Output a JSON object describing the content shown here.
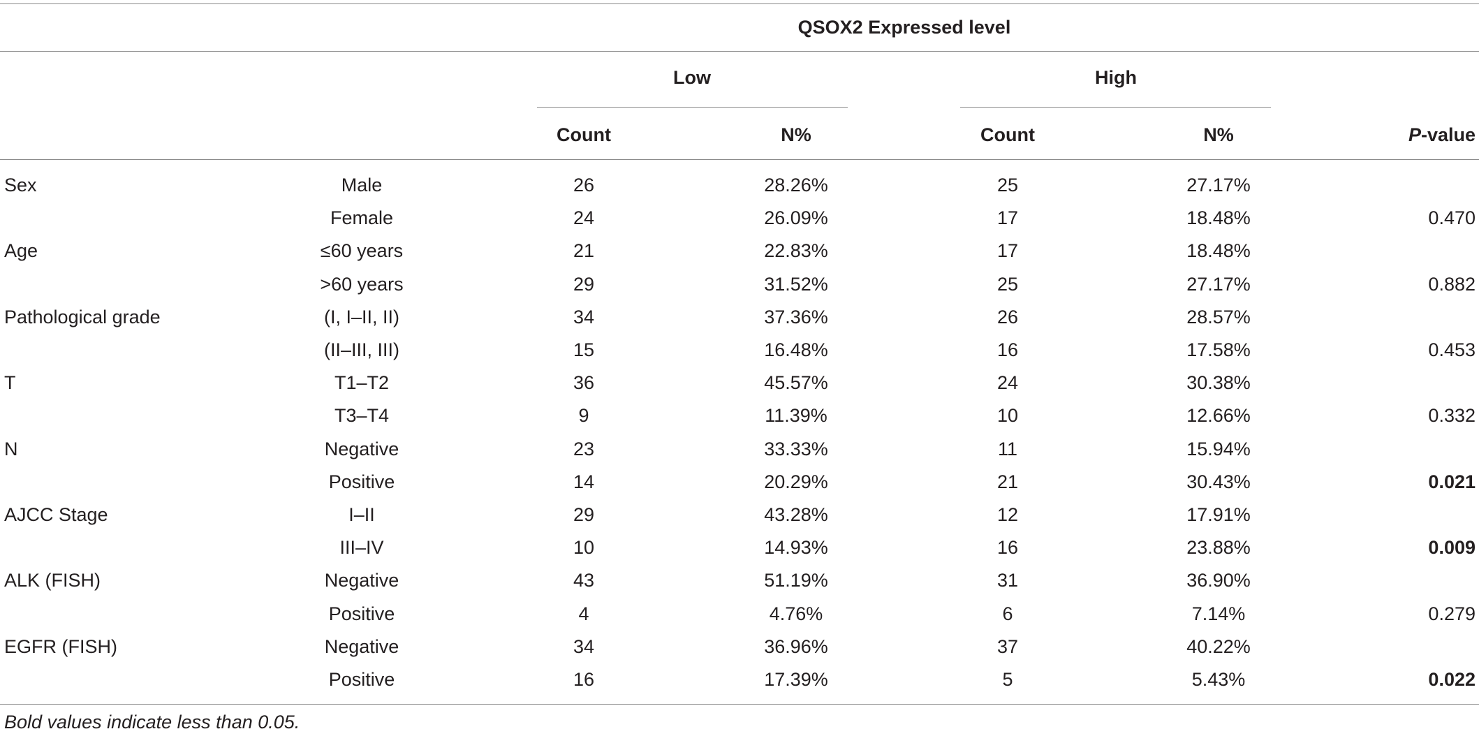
{
  "table": {
    "header": {
      "group_title": "QSOX2 Expressed level",
      "low": "Low",
      "high": "High",
      "low_count": "Count",
      "low_pct": "N%",
      "high_count": "Count",
      "high_pct": "N%",
      "pvalue_italic": "P",
      "pvalue_rest": "-value"
    },
    "rows": [
      {
        "variable": "Sex",
        "level": "Male",
        "low_count": "26",
        "low_pct": "28.26%",
        "high_count": "25",
        "high_pct": "27.17%",
        "p": "",
        "sig": false
      },
      {
        "variable": "",
        "level": "Female",
        "low_count": "24",
        "low_pct": "26.09%",
        "high_count": "17",
        "high_pct": "18.48%",
        "p": "0.470",
        "sig": false
      },
      {
        "variable": "Age",
        "level": "≤60 years",
        "low_count": "21",
        "low_pct": "22.83%",
        "high_count": "17",
        "high_pct": "18.48%",
        "p": "",
        "sig": false
      },
      {
        "variable": "",
        "level": ">60 years",
        "low_count": "29",
        "low_pct": "31.52%",
        "high_count": "25",
        "high_pct": "27.17%",
        "p": "0.882",
        "sig": false
      },
      {
        "variable": "Pathological grade",
        "level": "(I, I–II, II)",
        "low_count": "34",
        "low_pct": "37.36%",
        "high_count": "26",
        "high_pct": "28.57%",
        "p": "",
        "sig": false
      },
      {
        "variable": "",
        "level": "(II–III, III)",
        "low_count": "15",
        "low_pct": "16.48%",
        "high_count": "16",
        "high_pct": "17.58%",
        "p": "0.453",
        "sig": false
      },
      {
        "variable": "T",
        "level": "T1–T2",
        "low_count": "36",
        "low_pct": "45.57%",
        "high_count": "24",
        "high_pct": "30.38%",
        "p": "",
        "sig": false
      },
      {
        "variable": "",
        "level": "T3–T4",
        "low_count": "9",
        "low_pct": "11.39%",
        "high_count": "10",
        "high_pct": "12.66%",
        "p": "0.332",
        "sig": false
      },
      {
        "variable": "N",
        "level": "Negative",
        "low_count": "23",
        "low_pct": "33.33%",
        "high_count": "11",
        "high_pct": "15.94%",
        "p": "",
        "sig": false
      },
      {
        "variable": "",
        "level": "Positive",
        "low_count": "14",
        "low_pct": "20.29%",
        "high_count": "21",
        "high_pct": "30.43%",
        "p": "0.021",
        "sig": true
      },
      {
        "variable": "AJCC Stage",
        "level": "I–II",
        "low_count": "29",
        "low_pct": "43.28%",
        "high_count": "12",
        "high_pct": "17.91%",
        "p": "",
        "sig": false
      },
      {
        "variable": "",
        "level": "III–IV",
        "low_count": "10",
        "low_pct": "14.93%",
        "high_count": "16",
        "high_pct": "23.88%",
        "p": "0.009",
        "sig": true
      },
      {
        "variable": "ALK (FISH)",
        "level": "Negative",
        "low_count": "43",
        "low_pct": "51.19%",
        "high_count": "31",
        "high_pct": "36.90%",
        "p": "",
        "sig": false
      },
      {
        "variable": "",
        "level": "Positive",
        "low_count": "4",
        "low_pct": "4.76%",
        "high_count": "6",
        "high_pct": "7.14%",
        "p": "0.279",
        "sig": false
      },
      {
        "variable": "EGFR (FISH)",
        "level": "Negative",
        "low_count": "34",
        "low_pct": "36.96%",
        "high_count": "37",
        "high_pct": "40.22%",
        "p": "",
        "sig": false
      },
      {
        "variable": "",
        "level": "Positive",
        "low_count": "16",
        "low_pct": "17.39%",
        "high_count": "5",
        "high_pct": "5.43%",
        "p": "0.022",
        "sig": true
      }
    ],
    "footnote": "Bold values indicate less than 0.05."
  }
}
